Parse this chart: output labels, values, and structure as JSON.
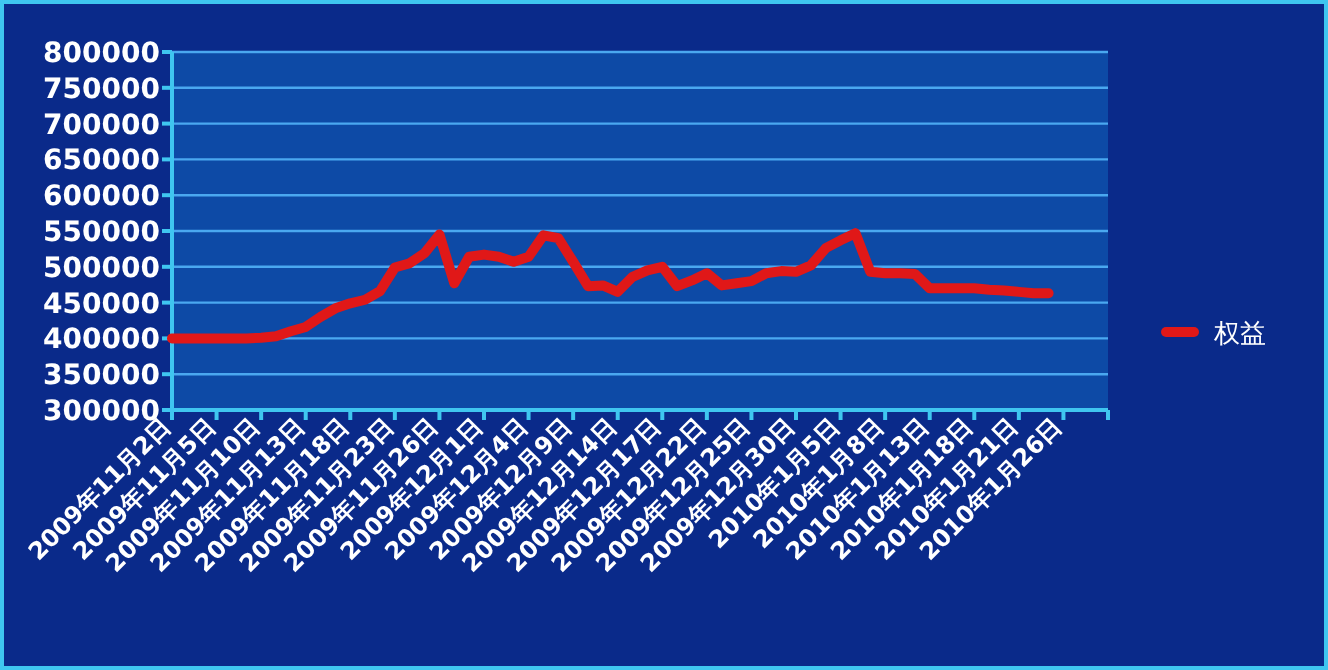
{
  "chart_data": {
    "type": "line",
    "categories": [
      "2009年11月2日",
      null,
      null,
      "2009年11月5日",
      null,
      null,
      "2009年11月10日",
      null,
      null,
      "2009年11月13日",
      null,
      null,
      "2009年11月18日",
      null,
      null,
      "2009年11月23日",
      null,
      null,
      "2009年11月26日",
      null,
      null,
      "2009年12月1日",
      null,
      null,
      "2009年12月4日",
      null,
      null,
      "2009年12月9日",
      null,
      null,
      "2009年12月14日",
      null,
      null,
      "2009年12月17日",
      null,
      null,
      "2009年12月22日",
      null,
      null,
      "2009年12月25日",
      null,
      null,
      "2009年12月30日",
      null,
      null,
      "2010年1月5日",
      null,
      null,
      "2010年1月8日",
      null,
      null,
      "2010年1月13日",
      null,
      null,
      "2010年1月18日",
      null,
      null,
      "2010年1月21日",
      null,
      null,
      "2010年1月26日",
      null,
      null
    ],
    "series": [
      {
        "name": "权益",
        "color": "#e01818",
        "values": [
          400000,
          400000,
          400000,
          400000,
          400000,
          400000,
          401000,
          403000,
          410000,
          416000,
          430000,
          442000,
          449000,
          454000,
          466000,
          499000,
          505000,
          519000,
          545000,
          477000,
          514000,
          517000,
          514000,
          507000,
          514000,
          544000,
          540000,
          507000,
          473000,
          474000,
          465000,
          486000,
          495000,
          500000,
          473000,
          481000,
          491000,
          474000,
          477000,
          480000,
          491000,
          494000,
          493000,
          502000,
          526000,
          537000,
          547000,
          493000,
          491000,
          491000,
          490000,
          470000,
          470000,
          470000,
          470000,
          468000,
          467000,
          465000,
          463000,
          463000,
          null,
          null,
          null
        ]
      }
    ],
    "ylim": [
      300000,
      800000
    ],
    "yticks": [
      300000,
      350000,
      400000,
      450000,
      500000,
      550000,
      600000,
      650000,
      700000,
      750000,
      800000
    ],
    "grid": "y",
    "legend": "right",
    "marker": "none",
    "line_style": "solid"
  }
}
